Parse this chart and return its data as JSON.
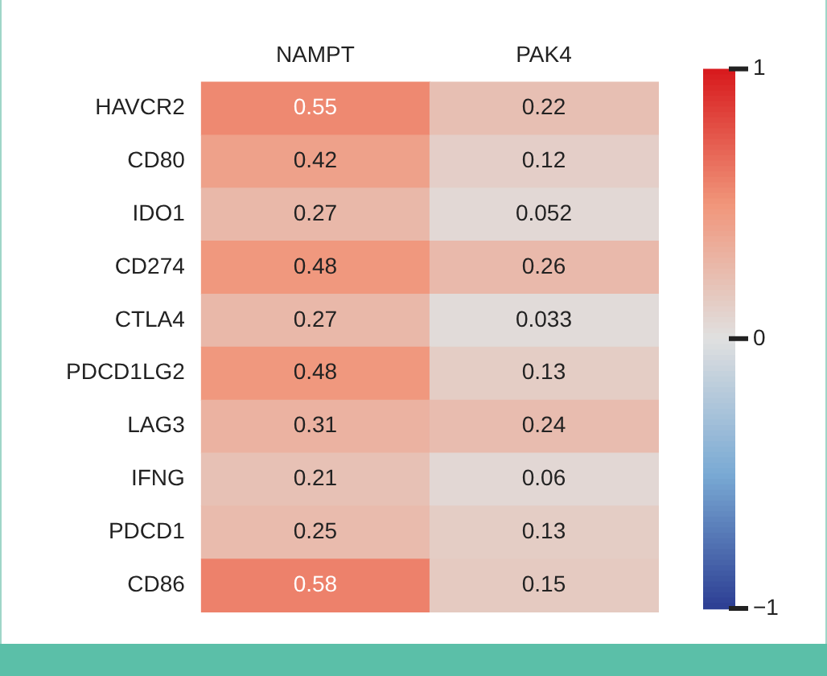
{
  "chart_data": {
    "type": "heatmap",
    "categories": [
      "NAMPT",
      "PAK4"
    ],
    "y_categories": [
      "HAVCR2",
      "CD80",
      "IDO1",
      "CD274",
      "CTLA4",
      "PDCD1LG2",
      "LAG3",
      "IFNG",
      "PDCD1",
      "CD86"
    ],
    "cells": [
      [
        0.55,
        0.22
      ],
      [
        0.42,
        0.12
      ],
      [
        0.27,
        0.052
      ],
      [
        0.48,
        0.26
      ],
      [
        0.27,
        0.033
      ],
      [
        0.48,
        0.13
      ],
      [
        0.31,
        0.24
      ],
      [
        0.21,
        0.06
      ],
      [
        0.25,
        0.13
      ],
      [
        0.58,
        0.15
      ]
    ],
    "clim": [
      -1,
      1
    ],
    "cticks": [
      1,
      0,
      {
        "value": -1,
        "label": "−1"
      }
    ],
    "data_labels": true
  }
}
